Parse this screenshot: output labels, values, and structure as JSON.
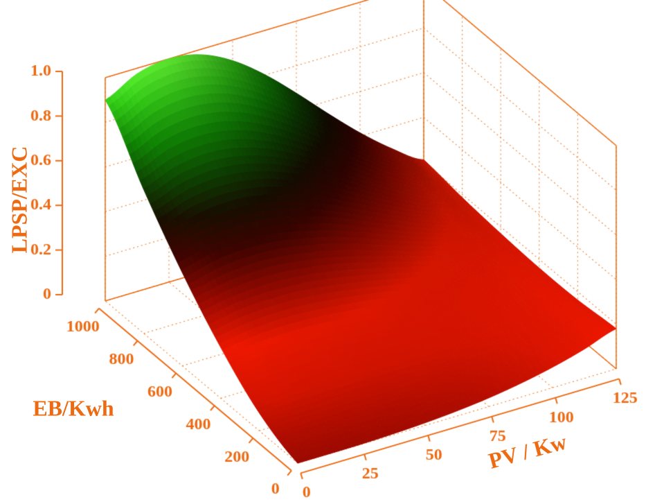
{
  "chart_data": {
    "type": "surface3d",
    "title": "",
    "x_axis": {
      "label": "PV / Kw",
      "range": [
        0,
        125
      ],
      "ticks": [
        0,
        25,
        50,
        75,
        100,
        125
      ]
    },
    "y_axis": {
      "label": "EB/Kwh",
      "range": [
        0,
        1000
      ],
      "ticks": [
        0,
        200,
        400,
        600,
        800,
        1000
      ]
    },
    "z_axis": {
      "label": "LPSP/EXC",
      "range": [
        0,
        1
      ],
      "ticks": [
        0,
        0.2,
        0.4,
        0.6,
        0.8,
        1
      ],
      "tick_labels": [
        "0",
        "0.2",
        "0.4",
        "0.6",
        "0.8",
        "1.0"
      ]
    },
    "x": [
      0,
      12.5,
      25,
      37.5,
      50,
      62.5,
      75,
      87.5,
      100,
      112.5,
      125
    ],
    "y": [
      0,
      200,
      400,
      600,
      800,
      1000
    ],
    "z": [
      [
        0.0,
        0.0,
        0.001,
        0.005,
        0.012,
        0.023,
        0.039,
        0.062,
        0.092,
        0.131,
        0.18
      ],
      [
        0.08,
        0.087,
        0.09,
        0.091,
        0.09,
        0.09,
        0.092,
        0.098,
        0.111,
        0.132,
        0.163
      ],
      [
        0.228,
        0.247,
        0.254,
        0.249,
        0.235,
        0.217,
        0.195,
        0.174,
        0.16,
        0.155,
        0.161
      ],
      [
        0.418,
        0.453,
        0.465,
        0.455,
        0.425,
        0.382,
        0.33,
        0.277,
        0.23,
        0.193,
        0.17
      ],
      [
        0.644,
        0.698,
        0.716,
        0.699,
        0.651,
        0.579,
        0.492,
        0.401,
        0.315,
        0.242,
        0.186
      ],
      [
        0.9,
        0.975,
        1.0,
        0.976,
        0.907,
        0.803,
        0.677,
        0.543,
        0.415,
        0.302,
        0.21
      ]
    ],
    "grid": "dotted",
    "legend": "none",
    "colors": {
      "axis": "#ec6a12",
      "grid": "#ee8030",
      "background": "#ffffff",
      "colormap": [
        [
          0.0,
          "#930900"
        ],
        [
          0.1,
          "#c21200"
        ],
        [
          0.22,
          "#da1600"
        ],
        [
          0.34,
          "#8c0900"
        ],
        [
          0.46,
          "#3a0400"
        ],
        [
          0.56,
          "#170e01"
        ],
        [
          0.66,
          "#0d3d02"
        ],
        [
          0.78,
          "#0f7c04"
        ],
        [
          0.9,
          "#2db314"
        ],
        [
          1.0,
          "#55d32c"
        ]
      ]
    }
  }
}
